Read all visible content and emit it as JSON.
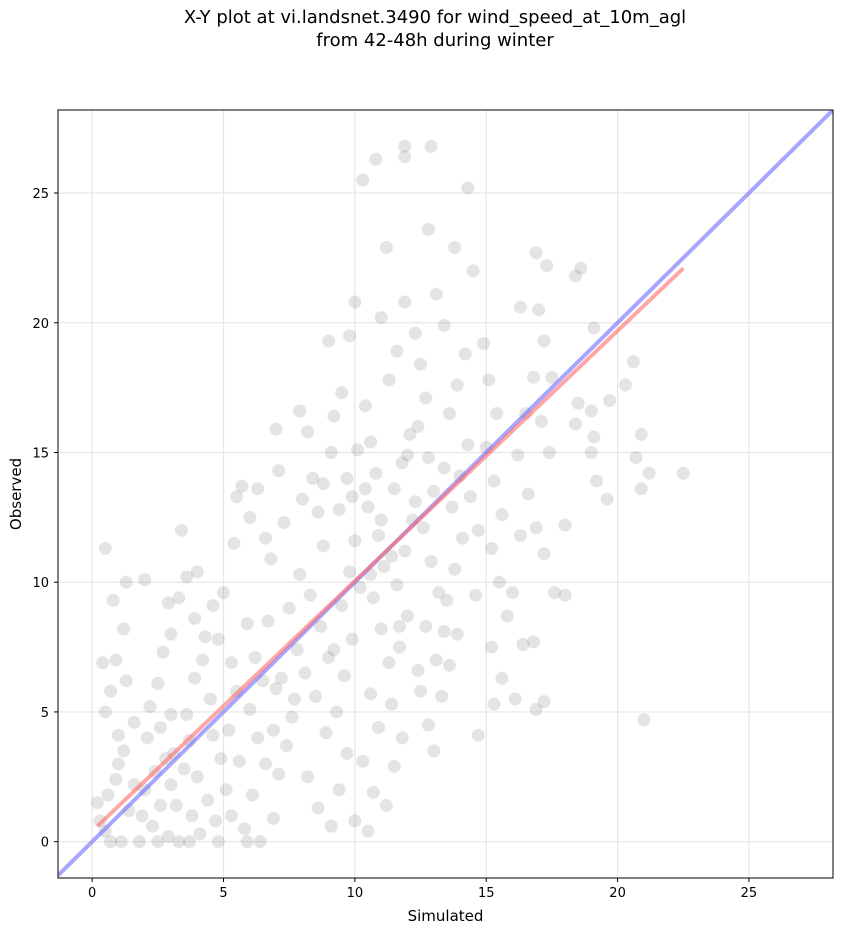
{
  "chart_data": {
    "type": "scatter",
    "title_line1": "X-Y plot at vi.landsnet.3490 for wind_speed_at_10m_agl",
    "title_line2": "from 42-48h during winter",
    "xlabel": "Simulated",
    "ylabel": "Observed",
    "xlim": [
      -1.3,
      28.2
    ],
    "ylim": [
      -1.4,
      28.2
    ],
    "x_ticks": [
      0,
      5,
      10,
      15,
      20,
      25
    ],
    "y_ticks": [
      0,
      5,
      10,
      15,
      20,
      25
    ],
    "grid": true,
    "point_color": "#555555",
    "one_to_one_line": {
      "color": "#6b6bff",
      "from": [
        -1.3,
        -1.3
      ],
      "to": [
        28.2,
        28.2
      ]
    },
    "fit_line": {
      "color": "#ff6b6b",
      "from": [
        0.2,
        0.6
      ],
      "to": [
        22.5,
        22.1
      ]
    },
    "points": [
      [
        0.5,
        11.3
      ],
      [
        0.8,
        9.3
      ],
      [
        1.3,
        10.0
      ],
      [
        2.0,
        10.1
      ],
      [
        1.2,
        8.2
      ],
      [
        0.9,
        7.0
      ],
      [
        0.7,
        5.8
      ],
      [
        0.4,
        6.9
      ],
      [
        0.5,
        5.0
      ],
      [
        1.0,
        4.1
      ],
      [
        0.6,
        1.8
      ],
      [
        0.9,
        2.4
      ],
      [
        0.3,
        0.8
      ],
      [
        0.2,
        1.5
      ],
      [
        0.7,
        0.0
      ],
      [
        1.1,
        0.0
      ],
      [
        0.5,
        0.4
      ],
      [
        1.4,
        1.2
      ],
      [
        1.2,
        3.5
      ],
      [
        1.6,
        4.6
      ],
      [
        2.0,
        2.0
      ],
      [
        2.3,
        0.6
      ],
      [
        2.6,
        1.4
      ],
      [
        2.8,
        3.2
      ],
      [
        3.0,
        2.2
      ],
      [
        3.2,
        1.4
      ],
      [
        3.3,
        0.0
      ],
      [
        3.5,
        2.8
      ],
      [
        3.8,
        1.0
      ],
      [
        4.1,
        0.3
      ],
      [
        2.2,
        5.2
      ],
      [
        2.5,
        6.1
      ],
      [
        2.7,
        7.3
      ],
      [
        3.0,
        8.0
      ],
      [
        3.3,
        9.4
      ],
      [
        3.6,
        10.2
      ],
      [
        3.4,
        12.0
      ],
      [
        3.9,
        8.6
      ],
      [
        4.2,
        7.0
      ],
      [
        4.5,
        5.5
      ],
      [
        2.6,
        4.4
      ],
      [
        3.0,
        4.9
      ],
      [
        3.7,
        3.9
      ],
      [
        4.0,
        2.5
      ],
      [
        4.4,
        1.6
      ],
      [
        4.7,
        0.8
      ],
      [
        4.9,
        3.2
      ],
      [
        5.2,
        4.3
      ],
      [
        5.5,
        5.8
      ],
      [
        5.3,
        6.9
      ],
      [
        4.8,
        7.8
      ],
      [
        4.6,
        9.1
      ],
      [
        5.0,
        9.6
      ],
      [
        5.4,
        11.5
      ],
      [
        5.7,
        13.7
      ],
      [
        5.5,
        13.3
      ],
      [
        6.0,
        12.5
      ],
      [
        6.3,
        13.6
      ],
      [
        6.6,
        11.7
      ],
      [
        6.8,
        10.9
      ],
      [
        5.9,
        8.4
      ],
      [
        6.2,
        7.1
      ],
      [
        6.5,
        6.2
      ],
      [
        6.0,
        5.1
      ],
      [
        6.3,
        4.0
      ],
      [
        6.6,
        3.0
      ],
      [
        6.1,
        1.8
      ],
      [
        5.8,
        0.5
      ],
      [
        6.4,
        0.0
      ],
      [
        6.9,
        0.9
      ],
      [
        7.1,
        2.6
      ],
      [
        7.4,
        3.7
      ],
      [
        7.6,
        4.8
      ],
      [
        7.2,
        6.3
      ],
      [
        7.8,
        7.4
      ],
      [
        7.5,
        9.0
      ],
      [
        7.9,
        10.3
      ],
      [
        7.3,
        12.3
      ],
      [
        8.0,
        13.2
      ],
      [
        7.1,
        14.3
      ],
      [
        7.0,
        15.9
      ],
      [
        7.9,
        16.6
      ],
      [
        8.2,
        15.8
      ],
      [
        8.4,
        14.0
      ],
      [
        8.6,
        12.7
      ],
      [
        8.8,
        11.4
      ],
      [
        8.3,
        9.5
      ],
      [
        8.7,
        8.3
      ],
      [
        9.0,
        7.1
      ],
      [
        8.5,
        5.6
      ],
      [
        8.9,
        4.2
      ],
      [
        8.2,
        2.5
      ],
      [
        8.6,
        1.3
      ],
      [
        9.1,
        0.6
      ],
      [
        9.4,
        2.0
      ],
      [
        9.7,
        3.4
      ],
      [
        9.3,
        5.0
      ],
      [
        9.6,
        6.4
      ],
      [
        9.9,
        7.8
      ],
      [
        9.5,
        9.1
      ],
      [
        9.8,
        10.4
      ],
      [
        10.0,
        11.6
      ],
      [
        9.4,
        12.8
      ],
      [
        9.7,
        14.0
      ],
      [
        10.1,
        15.1
      ],
      [
        9.2,
        16.4
      ],
      [
        9.5,
        17.3
      ],
      [
        9.8,
        19.5
      ],
      [
        10.0,
        20.8
      ],
      [
        9.0,
        19.3
      ],
      [
        10.4,
        16.8
      ],
      [
        10.6,
        15.4
      ],
      [
        10.8,
        14.2
      ],
      [
        10.5,
        12.9
      ],
      [
        10.9,
        11.8
      ],
      [
        11.1,
        10.6
      ],
      [
        10.7,
        9.4
      ],
      [
        11.0,
        8.2
      ],
      [
        11.3,
        6.9
      ],
      [
        10.6,
        5.7
      ],
      [
        10.9,
        4.4
      ],
      [
        10.3,
        3.1
      ],
      [
        10.7,
        1.9
      ],
      [
        10.0,
        0.8
      ],
      [
        10.5,
        0.4
      ],
      [
        11.2,
        1.4
      ],
      [
        11.5,
        2.9
      ],
      [
        11.8,
        4.0
      ],
      [
        11.4,
        5.3
      ],
      [
        11.7,
        7.5
      ],
      [
        12.0,
        8.7
      ],
      [
        11.6,
        9.9
      ],
      [
        11.9,
        11.2
      ],
      [
        12.2,
        12.4
      ],
      [
        11.5,
        13.6
      ],
      [
        11.8,
        14.6
      ],
      [
        12.1,
        15.7
      ],
      [
        11.3,
        17.8
      ],
      [
        11.6,
        18.9
      ],
      [
        11.0,
        20.2
      ],
      [
        11.9,
        20.8
      ],
      [
        12.3,
        19.6
      ],
      [
        12.5,
        18.4
      ],
      [
        12.7,
        17.1
      ],
      [
        12.4,
        16.0
      ],
      [
        12.8,
        14.8
      ],
      [
        13.0,
        13.5
      ],
      [
        12.6,
        12.1
      ],
      [
        12.9,
        10.8
      ],
      [
        13.2,
        9.6
      ],
      [
        12.7,
        8.3
      ],
      [
        13.1,
        7.0
      ],
      [
        12.5,
        5.8
      ],
      [
        12.8,
        4.5
      ],
      [
        13.0,
        3.5
      ],
      [
        13.3,
        5.6
      ],
      [
        13.6,
        6.8
      ],
      [
        13.9,
        8.0
      ],
      [
        13.5,
        9.3
      ],
      [
        13.8,
        10.5
      ],
      [
        14.1,
        11.7
      ],
      [
        13.7,
        12.9
      ],
      [
        14.0,
        14.1
      ],
      [
        14.3,
        15.3
      ],
      [
        13.6,
        16.5
      ],
      [
        13.9,
        17.6
      ],
      [
        14.2,
        18.8
      ],
      [
        13.4,
        19.9
      ],
      [
        13.1,
        21.1
      ],
      [
        13.8,
        22.9
      ],
      [
        14.5,
        22.0
      ],
      [
        14.3,
        25.2
      ],
      [
        12.8,
        23.6
      ],
      [
        11.2,
        22.9
      ],
      [
        10.8,
        26.3
      ],
      [
        10.3,
        25.5
      ],
      [
        11.9,
        26.4
      ],
      [
        11.9,
        26.8
      ],
      [
        12.9,
        26.8
      ],
      [
        14.9,
        19.2
      ],
      [
        15.1,
        17.8
      ],
      [
        15.4,
        16.5
      ],
      [
        15.0,
        15.2
      ],
      [
        15.3,
        13.9
      ],
      [
        15.6,
        12.6
      ],
      [
        15.2,
        11.3
      ],
      [
        15.5,
        10.0
      ],
      [
        15.8,
        8.7
      ],
      [
        15.2,
        7.5
      ],
      [
        15.6,
        6.3
      ],
      [
        14.7,
        4.1
      ],
      [
        15.3,
        5.3
      ],
      [
        16.1,
        5.5
      ],
      [
        16.4,
        7.6
      ],
      [
        16.0,
        9.6
      ],
      [
        16.3,
        11.8
      ],
      [
        16.6,
        13.4
      ],
      [
        16.2,
        14.9
      ],
      [
        16.5,
        16.5
      ],
      [
        16.8,
        17.9
      ],
      [
        16.3,
        20.6
      ],
      [
        16.9,
        22.7
      ],
      [
        17.3,
        22.2
      ],
      [
        17.0,
        20.5
      ],
      [
        17.2,
        19.3
      ],
      [
        17.5,
        17.9
      ],
      [
        17.1,
        16.2
      ],
      [
        17.4,
        15.0
      ],
      [
        16.9,
        12.1
      ],
      [
        17.2,
        11.1
      ],
      [
        17.6,
        9.6
      ],
      [
        16.8,
        7.7
      ],
      [
        16.9,
        5.1
      ],
      [
        17.2,
        5.4
      ],
      [
        18.0,
        12.2
      ],
      [
        18.0,
        9.5
      ],
      [
        18.4,
        16.1
      ],
      [
        18.5,
        16.9
      ],
      [
        18.6,
        22.1
      ],
      [
        18.4,
        21.8
      ],
      [
        19.1,
        19.8
      ],
      [
        19.0,
        16.6
      ],
      [
        19.1,
        15.6
      ],
      [
        19.2,
        13.9
      ],
      [
        19.0,
        15.0
      ],
      [
        19.7,
        17.0
      ],
      [
        19.6,
        13.2
      ],
      [
        20.3,
        17.6
      ],
      [
        20.6,
        18.5
      ],
      [
        20.7,
        14.8
      ],
      [
        20.9,
        13.6
      ],
      [
        20.9,
        15.7
      ],
      [
        21.2,
        14.2
      ],
      [
        21.0,
        4.7
      ],
      [
        22.5,
        14.2
      ],
      [
        2.1,
        4.0
      ],
      [
        1.6,
        2.2
      ],
      [
        1.9,
        1.0
      ],
      [
        2.4,
        2.7
      ],
      [
        2.9,
        0.2
      ],
      [
        3.1,
        3.4
      ],
      [
        3.6,
        4.9
      ],
      [
        3.9,
        6.3
      ],
      [
        4.3,
        7.9
      ],
      [
        4.6,
        4.1
      ],
      [
        5.1,
        2.0
      ],
      [
        5.6,
        3.1
      ],
      [
        6.7,
        8.5
      ],
      [
        7.7,
        5.5
      ],
      [
        8.1,
        6.5
      ],
      [
        9.2,
        7.4
      ],
      [
        10.2,
        9.8
      ],
      [
        10.4,
        13.6
      ],
      [
        11.0,
        12.4
      ],
      [
        11.4,
        11.0
      ],
      [
        12.3,
        13.1
      ],
      [
        12.0,
        14.9
      ],
      [
        13.4,
        14.4
      ],
      [
        14.4,
        13.3
      ],
      [
        14.7,
        12.0
      ],
      [
        8.8,
        13.8
      ],
      [
        9.1,
        15.0
      ],
      [
        9.9,
        13.3
      ],
      [
        10.6,
        10.3
      ],
      [
        11.7,
        8.3
      ],
      [
        12.4,
        6.6
      ],
      [
        13.4,
        8.1
      ],
      [
        14.6,
        9.5
      ],
      [
        6.9,
        4.3
      ],
      [
        7.0,
        5.9
      ],
      [
        5.3,
        1.0
      ],
      [
        4.8,
        0.0
      ],
      [
        3.7,
        0.0
      ],
      [
        2.5,
        0.0
      ],
      [
        1.8,
        0.0
      ],
      [
        5.9,
        0.0
      ],
      [
        1.0,
        3.0
      ],
      [
        1.3,
        6.2
      ],
      [
        2.9,
        9.2
      ],
      [
        4.0,
        10.4
      ]
    ]
  }
}
